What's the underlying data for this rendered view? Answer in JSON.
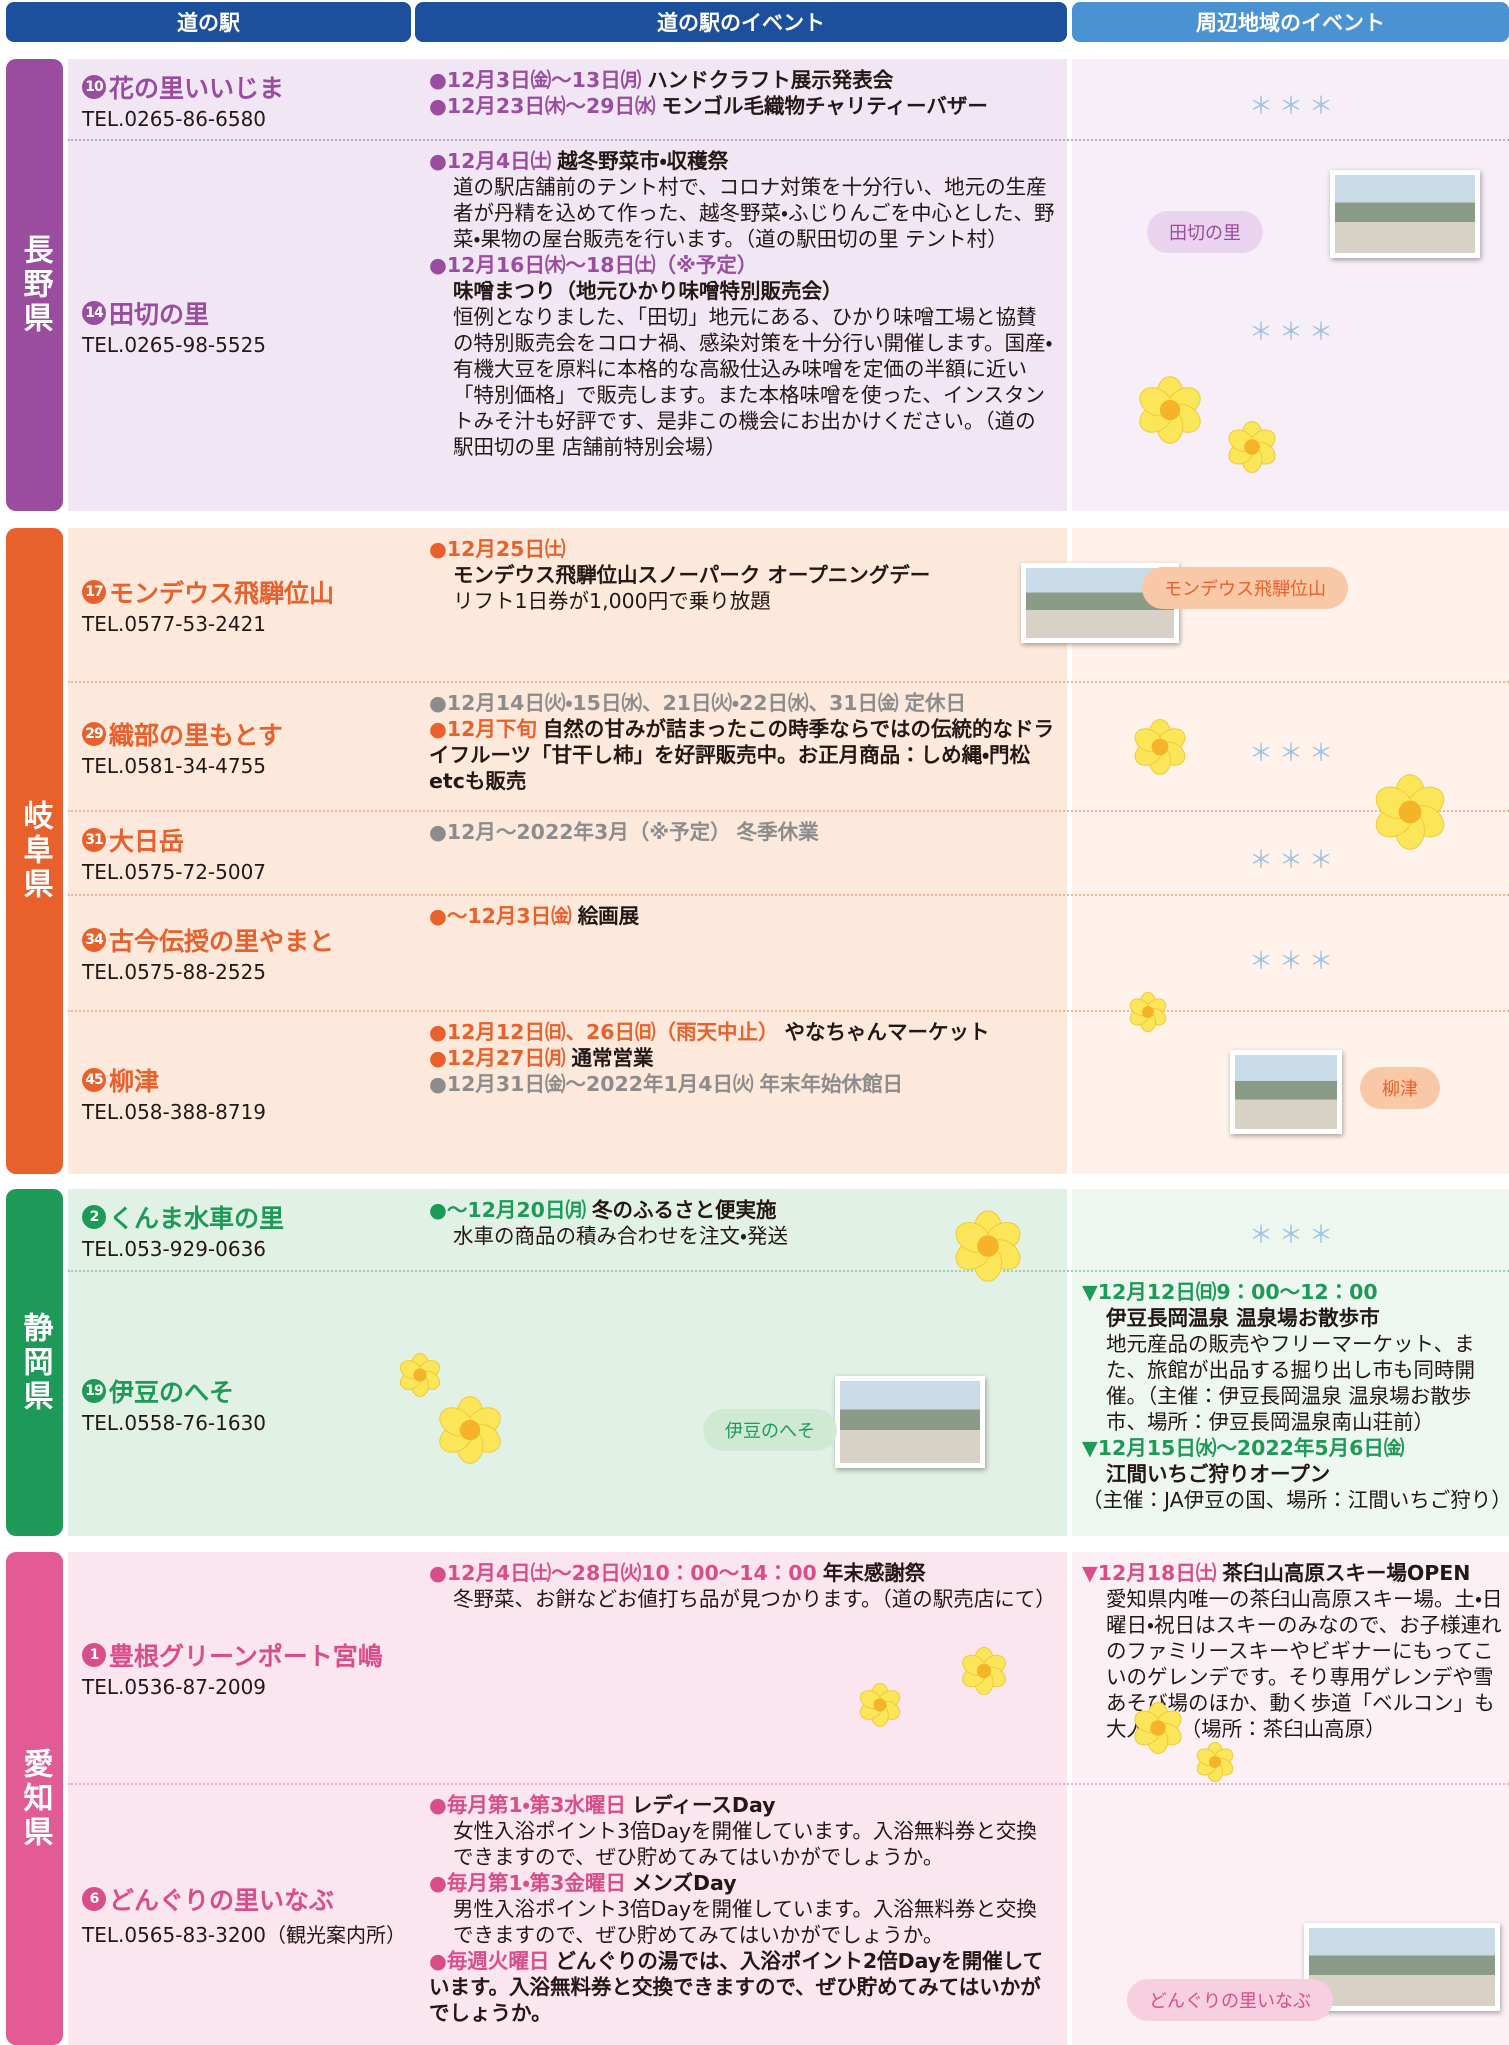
{
  "header": {
    "col1": "道の駅",
    "col2": "道の駅のイベント",
    "col3": "周辺地域のイベント"
  },
  "sections": [
    {
      "prefecture": "長野県",
      "color": "#9a4c9f",
      "rows": [
        {
          "no": "10",
          "name": "花の里いいじま",
          "tel": "TEL.0265-86-6580",
          "events": [
            {
              "date": "●12月3日㈮～13日㈪",
              "title": "ハンドクラフト展示発表会"
            },
            {
              "date": "●12月23日㈭～29日㈬",
              "title": "モンゴル毛織物チャリティーバザー"
            }
          ],
          "stars": "＊＊＊"
        },
        {
          "no": "14",
          "name": "田切の里",
          "tel": "TEL.0265-98-5525",
          "events": [
            {
              "date": "●12月4日㈯",
              "title": "越冬野菜市・収穫祭",
              "body": "道の駅店舗前のテント村で、コロナ対策を十分行い、地元の生産者が丹精を込めて作った、越冬野菜・ふじりんごを中心とした、野菜・果物の屋台販売を行います。（道の駅田切の里 テント村）"
            },
            {
              "date": "●12月16日㈭～18日㈯（※予定）",
              "title": "味噌まつり（地元ひかり味噌特別販売会）",
              "title_newline": true,
              "body": "恒例となりました、「田切」地元にある、ひかり味噌工場と協賛の特別販売会をコロナ禍、感染対策を十分行い開催します。国産・有機大豆を原料に本格的な高級仕込み味噌を定価の半額に近い「特別価格」で販売します。また本格味噌を使った、インスタントみそ汁も好評です、是非この機会にお出かけください。（道の駅田切の里 店舗前特別会場）"
            }
          ],
          "photo_label": "田切の里",
          "stars": "＊＊＊"
        }
      ]
    },
    {
      "prefecture": "岐阜県",
      "color": "#e8612c",
      "rows": [
        {
          "no": "17",
          "name": "モンデウス飛騨位山",
          "tel": "TEL.0577-53-2421",
          "events": [
            {
              "date": "●12月25日㈯",
              "title": "モンデウス飛騨位山スノーパーク オープニングデー",
              "title_newline": true,
              "body": "リフト1日券が1,000円で乗り放題"
            }
          ],
          "photo_label": "モンデウス飛騨位山"
        },
        {
          "no": "29",
          "name": "織部の里もとす",
          "tel": "TEL.0581-34-4755",
          "events": [
            {
              "date": "●12月14日㈫・15日㈬、21日㈫・22日㈬、31日㈮",
              "title": "定休日",
              "muted": true
            },
            {
              "date": "●12月下旬",
              "title": "自然の甘みが詰まったこの時季ならではの伝統的なドライフルーツ「甘干し柿」を好評販売中。お正月商品：しめ縄・門松etcも販売"
            }
          ],
          "stars": "＊＊＊"
        },
        {
          "no": "31",
          "name": "大日岳",
          "tel": "TEL.0575-72-5007",
          "events": [
            {
              "date": "●12月～2022年3月（※予定）",
              "title": "冬季休業",
              "muted": true
            }
          ],
          "stars": "＊＊＊"
        },
        {
          "no": "34",
          "name": "古今伝授の里やまと",
          "tel": "TEL.0575-88-2525",
          "events": [
            {
              "date": "●～12月3日㈮",
              "title": "絵画展"
            }
          ],
          "stars": "＊＊＊"
        },
        {
          "no": "45",
          "name": "柳津",
          "tel": "TEL.058-388-8719",
          "events": [
            {
              "date": "●12月12日㈰、26日㈰（雨天中止）",
              "title": "やなちゃんマーケット"
            },
            {
              "date": "●12月27日㈪",
              "title": "通常営業"
            },
            {
              "date": "●12月31日㈮～2022年1月4日㈫",
              "title": "年末年始休館日",
              "muted": true
            }
          ],
          "photo_label": "柳津"
        }
      ]
    },
    {
      "prefecture": "静岡県",
      "color": "#1e9a58",
      "rows": [
        {
          "no": "2",
          "name": "くんま水車の里",
          "tel": "TEL.053-929-0636",
          "events": [
            {
              "date": "●～12月20日㈪",
              "title": "冬のふるさと便実施",
              "body": "水車の商品の積み合わせを注文・発送"
            }
          ],
          "stars": "＊＊＊"
        },
        {
          "no": "19",
          "name": "伊豆のへそ",
          "tel": "TEL.0558-76-1630",
          "photo_label": "伊豆のへそ",
          "area_events": [
            {
              "date": "▼12月12日㈰9：00～12：00",
              "title": "伊豆長岡温泉 温泉場お散歩市",
              "title_newline": true,
              "body": "地元産品の販売やフリーマーケット、また、旅館が出品する掘り出し市も同時開催。（主催：伊豆長岡温泉 温泉場お散歩市、場所：伊豆長岡温泉南山荘前）"
            },
            {
              "date": "▼12月15日㈬～2022年5月6日㈮",
              "title": "江間いちご狩りオープン",
              "title_newline": true,
              "body": "（主催：JA伊豆の国、場所：江間いちご狩り）",
              "body_inline": true
            }
          ]
        }
      ]
    },
    {
      "prefecture": "愛知県",
      "color": "#e25b94",
      "rows": [
        {
          "no": "1",
          "name": "豊根グリーンポート宮嶋",
          "tel": "TEL.0536-87-2009",
          "events": [
            {
              "date": "●12月4日㈯～28日㈫10：00～14：00",
              "title": "年末感謝祭",
              "body": "冬野菜、お餅などお値打ち品が見つかります。（道の駅売店にて）"
            }
          ],
          "area_events": [
            {
              "date": "▼12月18日㈯",
              "title": "茶臼山高原スキー場OPEN",
              "body": "愛知県内唯一の茶臼山高原スキー場。土・日曜日・祝日はスキーのみなので、お子様連れのファミリースキーやビギナーにもってこいのゲレンデです。そり専用ゲレンデや雪あそび場のほか、動く歩道「ベルコン」も大人気♪（場所：茶臼山高原）"
            }
          ]
        },
        {
          "no": "6",
          "name": "どんぐりの里いなぶ",
          "tel": "TEL.0565-83-3200（観光案内所）",
          "events": [
            {
              "date": "●毎月第1・第3水曜日",
              "title": "レディースDay",
              "body": "女性入浴ポイント3倍Dayを開催しています。入浴無料券と交換できますので、ぜひ貯めてみてはいかがでしょうか。"
            },
            {
              "date": "●毎月第1・第3金曜日",
              "title": "メンズDay",
              "body": "男性入浴ポイント3倍Dayを開催しています。入浴無料券と交換できますので、ぜひ貯めてみてはいかがでしょうか。"
            },
            {
              "date": "●毎週火曜日",
              "title": "どんぐりの湯では、入浴ポイント2倍Dayを開催しています。入浴無料券と交換できますので、ぜひ貯めてみてはいかがでしょうか。"
            }
          ],
          "photo_label": "どんぐりの里いなぶ"
        }
      ]
    }
  ]
}
